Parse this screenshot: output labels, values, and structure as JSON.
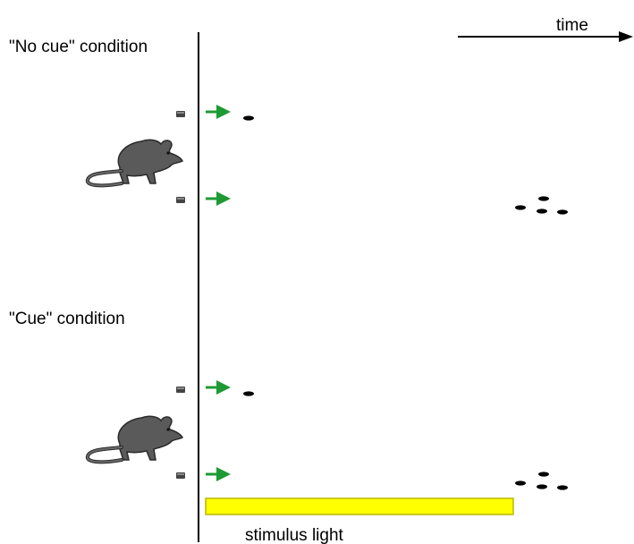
{
  "time_label": "time",
  "conditions": [
    {
      "label": "\"No cue\" condition"
    },
    {
      "label": "\"Cue\" condition"
    }
  ],
  "stimulus_light": {
    "label": "stimulus light",
    "color": "#ffff00"
  },
  "colors": {
    "arrow": "#1e9a34",
    "rat": "#555555",
    "pellet": "#000000"
  }
}
